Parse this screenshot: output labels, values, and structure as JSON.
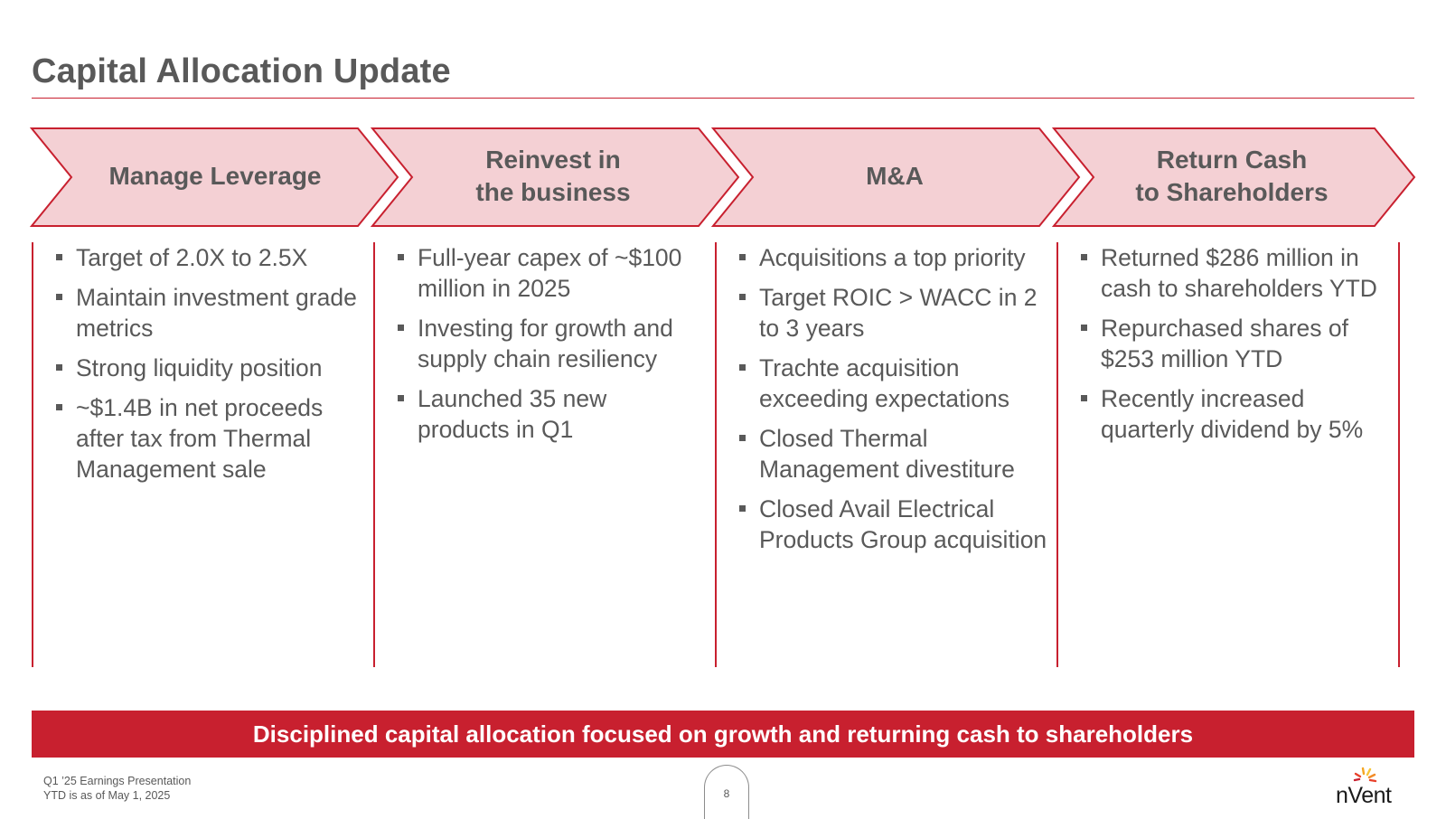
{
  "title": "Capital Allocation Update",
  "colors": {
    "accent": "#c8202f",
    "arrow_fill": "#f4d0d4",
    "text": "#595959"
  },
  "pillars": [
    {
      "label": "Manage Leverage",
      "bullets": [
        "Target of 2.0X to 2.5X",
        "Maintain investment grade metrics",
        "Strong liquidity position",
        "~$1.4B in net proceeds after tax from Thermal Management sale"
      ]
    },
    {
      "label": "Reinvest in\nthe business",
      "bullets": [
        "Full-year capex of ~$100 million in 2025",
        "Investing for growth and supply chain resiliency",
        "Launched 35 new products in Q1"
      ]
    },
    {
      "label": "M&A",
      "bullets": [
        "Acquisitions a top priority",
        "Target ROIC > WACC in 2 to 3 years",
        "Trachte acquisition exceeding expectations",
        "Closed Thermal Management divestiture",
        "Closed Avail Electrical Products Group acquisition"
      ]
    },
    {
      "label": "Return Cash\nto Shareholders",
      "bullets": [
        "Returned $286 million in cash to shareholders YTD",
        "Repurchased shares of $253 million YTD",
        "Recently increased quarterly dividend by 5%"
      ]
    }
  ],
  "banner": "Disciplined capital allocation focused on growth and returning cash to shareholders",
  "footer": {
    "line1": "Q1 ’25 Earnings Presentation",
    "line2": "YTD is as of May 1, 2025",
    "page_number": "8",
    "logo_text": "nVent"
  }
}
